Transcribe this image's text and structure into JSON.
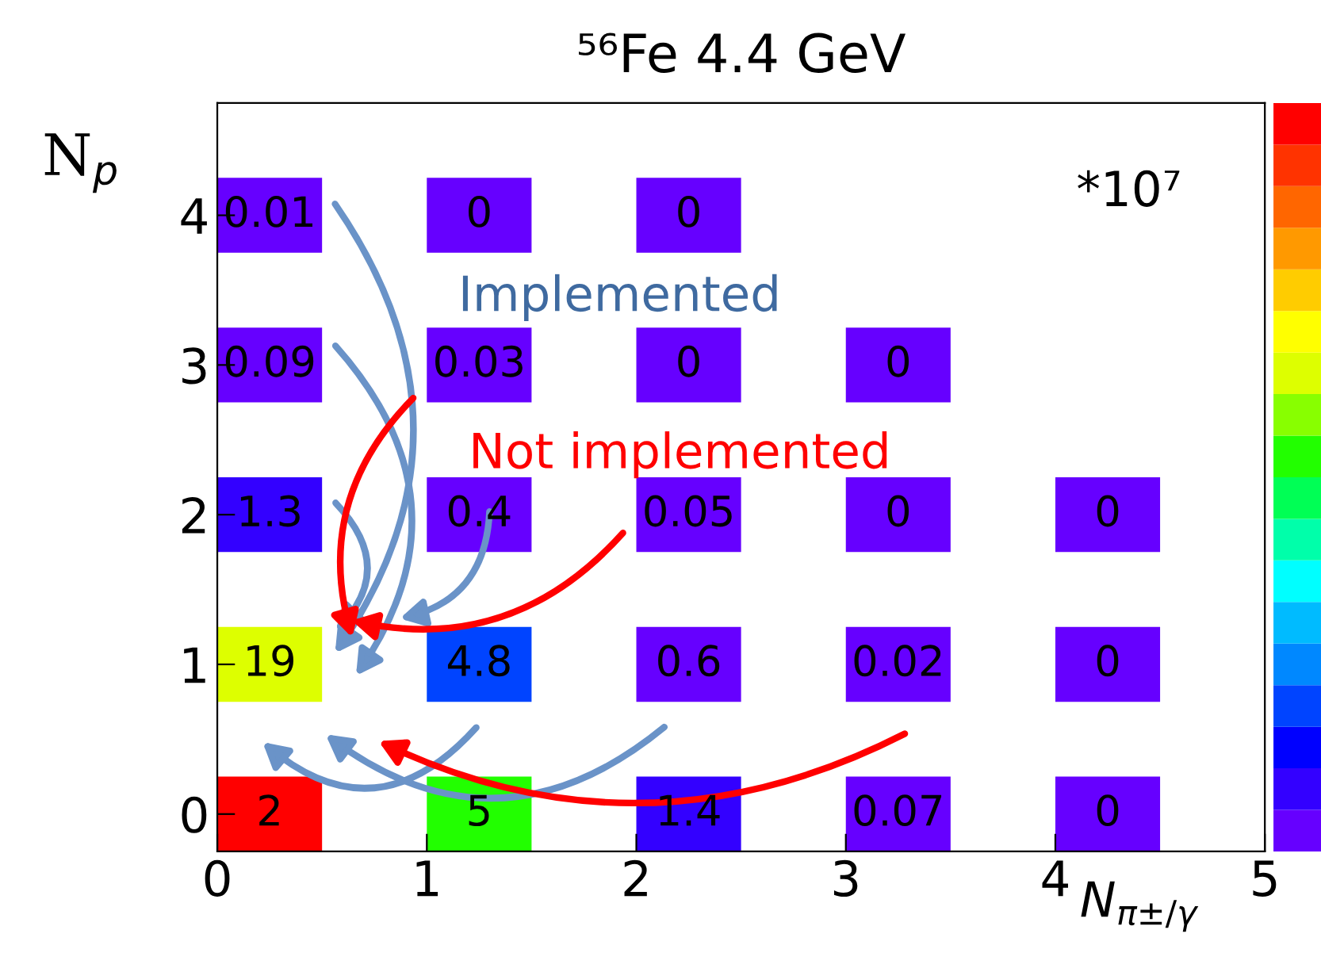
{
  "chart_data": {
    "type": "heatmap",
    "title": "⁵⁶Fe 4.4 GeV",
    "xlabel": "N$_{π±/γ}$",
    "ylabel": "N$_{p}$",
    "cells": [
      [
        0.01,
        0,
        0,
        null,
        null
      ],
      [
        0.09,
        0.03,
        0,
        0,
        null
      ],
      [
        1.3,
        0.4,
        0.05,
        0,
        0
      ],
      [
        19,
        4.8,
        0.6,
        0.02,
        0
      ],
      [
        2,
        5,
        1.4,
        0.07,
        0
      ]
    ],
    "colors": [
      [
        "#6600ff",
        "#6600ff",
        "#6600ff",
        null,
        null
      ],
      [
        "#6600ff",
        "#6600ff",
        "#6600ff",
        "#6600ff",
        null
      ],
      [
        "#3300ff",
        "#6600ff",
        "#6600ff",
        "#6600ff",
        "#6600ff"
      ],
      [
        "#ddff00",
        "#0044ff",
        "#6600ff",
        "#6600ff",
        "#6600ff"
      ],
      [
        "#ff0000",
        "#22ff00",
        "#3300ff",
        "#6600ff",
        "#6600ff"
      ]
    ],
    "data_labels": true,
    "xlim": [
      0,
      5
    ],
    "xticks": [
      0,
      1,
      2,
      3,
      4,
      5
    ],
    "ylim": [
      0,
      5
    ],
    "yticks": [
      {
        "value": 0.25,
        "label": "0"
      },
      {
        "value": 1.25,
        "label": "1"
      },
      {
        "value": 2.25,
        "label": "2"
      },
      {
        "value": 3.25,
        "label": "3"
      },
      {
        "value": 4.25,
        "label": "4"
      }
    ],
    "annotations": [
      "*10⁷",
      "Implemented",
      "Not implemented"
    ]
  }
}
